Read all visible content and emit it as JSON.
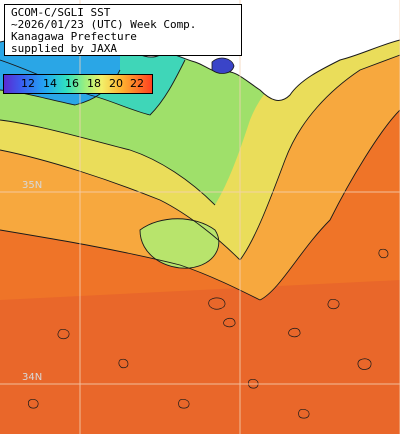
{
  "title": {
    "line1": "GCOM-C/SGLI SST",
    "line2": "~2026/01/23 (UTC) Week Comp.",
    "line3": "Kanagawa Prefecture",
    "line4": "supplied by JAXA"
  },
  "legend": {
    "ticks": [
      "12",
      "14",
      "16",
      "18",
      "20",
      "22"
    ]
  },
  "grid_labels": {
    "lat_upper": "35N",
    "lat_lower": "34N"
  },
  "colors": {
    "land": "#ffffff",
    "warm_sea": "#f07a2a",
    "mid_sea": "#f6b24a",
    "bay": "#d8e870",
    "cool_bay": "#40d8b8",
    "cold_bay": "#2aa6e6",
    "contour": "#1a1a1a"
  }
}
